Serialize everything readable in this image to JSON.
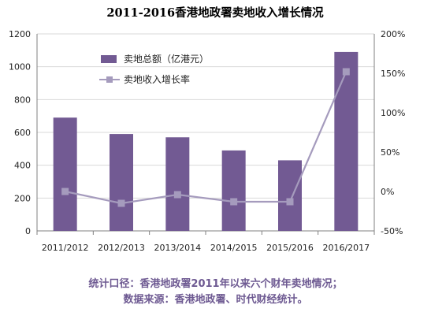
{
  "chart_data": {
    "type": "bar",
    "title": "2011-2016香港地政署卖地收入增长情况",
    "categories": [
      "2011/2012",
      "2012/2013",
      "2013/2014",
      "2014/2015",
      "2015/2016",
      "2016/2017"
    ],
    "series": [
      {
        "name": "卖地总额（亿港元）",
        "type": "bar",
        "axis": "left",
        "values": [
          690,
          590,
          570,
          490,
          430,
          1090
        ]
      },
      {
        "name": "卖地收入增长率",
        "type": "line",
        "axis": "right",
        "unit": "%",
        "values": [
          0,
          -15,
          -4,
          -13,
          -13,
          152
        ]
      }
    ],
    "y_left": {
      "ylim": [
        0,
        1200
      ],
      "ticks": [
        "0",
        "200",
        "400",
        "600",
        "800",
        "1000",
        "1200"
      ]
    },
    "y_right": {
      "ylim": [
        -50,
        200
      ],
      "ticks": [
        "-50%",
        "0%",
        "50%",
        "100%",
        "150%",
        "200%"
      ]
    },
    "legend": {
      "placement": "top-left"
    },
    "grid": true,
    "colors": {
      "bar": "#725a93",
      "line": "#a59bbd",
      "grid": "#d9d9d9"
    }
  },
  "footnote": {
    "line1": "统计口径：香港地政署2011年以来六个财年卖地情况；",
    "line2": "数据来源：香港地政署、时代财经统计。"
  }
}
